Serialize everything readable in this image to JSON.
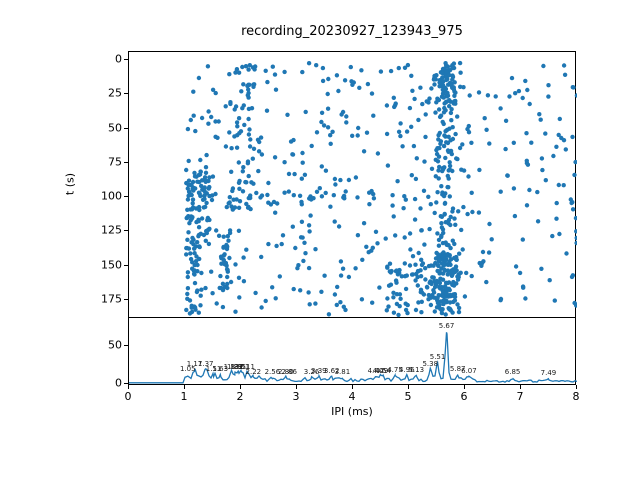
{
  "figure": {
    "title": "recording_20230927_123943_975",
    "background_color": "#ffffff",
    "accent_color": "#1f77b4",
    "axis_color": "#000000"
  },
  "chart_data": [
    {
      "type": "scatter",
      "title": "recording_20230927_123943_975",
      "xlabel": "IPI (ms)",
      "ylabel": "t (s)",
      "xlim": [
        0,
        8
      ],
      "ylim": [
        189,
        -6
      ],
      "y_axis_inverted": true,
      "x_ticks": [
        0,
        1,
        2,
        3,
        4,
        5,
        6,
        7,
        8
      ],
      "y_ticks": [
        0,
        25,
        50,
        75,
        100,
        125,
        150,
        175
      ],
      "marker_color": "#1f77b4",
      "marker_radius_px": 2.2,
      "grid": false,
      "legend": "none",
      "n_points_estimate": 1060,
      "clusters": [
        {
          "name": "background",
          "count": 330,
          "x": {
            "type": "uniform",
            "min": 1.02,
            "max": 6.2
          },
          "t": {
            "type": "uniform",
            "min": 2,
            "max": 186
          }
        },
        {
          "name": "background-right",
          "count": 80,
          "x": {
            "type": "uniform",
            "min": 6.2,
            "max": 7.97
          },
          "t": {
            "type": "uniform",
            "min": 2,
            "max": 186
          }
        },
        {
          "name": "band-5p67-full",
          "count": 150,
          "x": {
            "type": "gauss",
            "mean": 5.67,
            "std": 0.13
          },
          "t": {
            "type": "uniform",
            "min": 2,
            "max": 186
          }
        },
        {
          "name": "band-5p67-top",
          "count": 60,
          "x": {
            "type": "gauss",
            "mean": 5.67,
            "std": 0.11
          },
          "t": {
            "type": "uniform",
            "min": 2,
            "max": 32
          }
        },
        {
          "name": "band-5p67-bottom",
          "count": 110,
          "x": {
            "type": "gauss",
            "mean": 5.65,
            "std": 0.14
          },
          "t": {
            "type": "uniform",
            "min": 140,
            "max": 186
          }
        },
        {
          "name": "left-cluster",
          "count": 85,
          "x": {
            "type": "uniform",
            "min": 1.02,
            "max": 1.45
          },
          "t": {
            "type": "uniform",
            "min": 78,
            "max": 136
          }
        },
        {
          "name": "left-column-low",
          "count": 35,
          "x": {
            "type": "uniform",
            "min": 1.02,
            "max": 1.3
          },
          "t": {
            "type": "uniform",
            "min": 136,
            "max": 186
          }
        },
        {
          "name": "line-1p7",
          "count": 30,
          "x": {
            "type": "gauss",
            "mean": 1.72,
            "std": 0.05
          },
          "t": {
            "type": "uniform",
            "min": 125,
            "max": 172
          }
        },
        {
          "name": "band-2",
          "count": 70,
          "x": {
            "type": "gauss",
            "mean": 2.05,
            "std": 0.18
          },
          "t": {
            "type": "uniform",
            "min": 3,
            "max": 112
          }
        },
        {
          "name": "hband-100",
          "count": 40,
          "x": {
            "type": "uniform",
            "min": 1.05,
            "max": 6.0
          },
          "t": {
            "type": "gauss",
            "mean": 101,
            "std": 4
          }
        },
        {
          "name": "right-edge-column",
          "count": 18,
          "x": {
            "type": "uniform",
            "min": 7.88,
            "max": 8.0
          },
          "t": {
            "type": "uniform",
            "min": 4,
            "max": 184
          }
        },
        {
          "name": "bottom-cluster",
          "count": 60,
          "x": {
            "type": "uniform",
            "min": 4.6,
            "max": 5.5
          },
          "t": {
            "type": "uniform",
            "min": 148,
            "max": 186
          }
        }
      ]
    },
    {
      "type": "line",
      "xlabel": "IPI (ms)",
      "ylabel": "",
      "xlim": [
        0,
        8
      ],
      "ylim": [
        -3,
        85
      ],
      "x_ticks": [
        0,
        1,
        2,
        3,
        4,
        5,
        6,
        7,
        8
      ],
      "y_ticks": [
        0,
        50
      ],
      "line_color": "#1f77b4",
      "grid": false,
      "legend": "none",
      "baseline_regions": [
        {
          "from": 0,
          "to": 1.0,
          "level": 0.3
        },
        {
          "from": 1.0,
          "to": 2.35,
          "level": 6.5
        },
        {
          "from": 2.35,
          "to": 6.2,
          "level": 4.5
        },
        {
          "from": 6.2,
          "to": 8.01,
          "level": 2.5
        }
      ],
      "peaks": [
        {
          "x": 1.05,
          "h": 11,
          "w": 0.02,
          "label": "1.05"
        },
        {
          "x": 1.17,
          "h": 17,
          "w": 0.03,
          "label": "1.17"
        },
        {
          "x": 1.37,
          "h": 17,
          "w": 0.03,
          "label": "1.37"
        },
        {
          "x": 1.51,
          "h": 11,
          "w": 0.025,
          "label": "1.51"
        },
        {
          "x": 1.63,
          "h": 11,
          "w": 0.025,
          "label": "1.63"
        },
        {
          "x": 1.83,
          "h": 13,
          "w": 0.025,
          "label": "1.83"
        },
        {
          "x": 1.89,
          "h": 13,
          "w": 0.025,
          "label": "1.89"
        },
        {
          "x": 1.95,
          "h": 13,
          "w": 0.025,
          "label": "1.95"
        },
        {
          "x": 2.01,
          "h": 13,
          "w": 0.025,
          "label": "2.01"
        },
        {
          "x": 2.11,
          "h": 13,
          "w": 0.025,
          "label": "2.11"
        },
        {
          "x": 2.22,
          "h": 7,
          "w": 0.02,
          "label": "2.22"
        },
        {
          "x": 2.56,
          "h": 7,
          "w": 0.02,
          "label": "2.56"
        },
        {
          "x": 2.8,
          "h": 7,
          "w": 0.02,
          "label": "2.80"
        },
        {
          "x": 2.86,
          "h": 7,
          "w": 0.02,
          "label": "2.86"
        },
        {
          "x": 3.26,
          "h": 7,
          "w": 0.02,
          "label": "3.26"
        },
        {
          "x": 3.39,
          "h": 7.5,
          "w": 0.02,
          "label": "3.39"
        },
        {
          "x": 3.62,
          "h": 8,
          "w": 0.02,
          "label": "3.62"
        },
        {
          "x": 3.81,
          "h": 7,
          "w": 0.02,
          "label": "3.81"
        },
        {
          "x": 4.4,
          "h": 8,
          "w": 0.02,
          "label": "4.40"
        },
        {
          "x": 4.49,
          "h": 8.5,
          "w": 0.02,
          "label": "4.49"
        },
        {
          "x": 4.54,
          "h": 8.5,
          "w": 0.02,
          "label": "4.54"
        },
        {
          "x": 4.75,
          "h": 9,
          "w": 0.02,
          "label": "4.75"
        },
        {
          "x": 4.96,
          "h": 9,
          "w": 0.02,
          "label": "4.96"
        },
        {
          "x": 5.13,
          "h": 9.5,
          "w": 0.02,
          "label": "5.13"
        },
        {
          "x": 5.38,
          "h": 17,
          "w": 0.025,
          "label": "5.38"
        },
        {
          "x": 5.51,
          "h": 26,
          "w": 0.022,
          "label": "5.51"
        },
        {
          "x": 5.67,
          "h": 67,
          "w": 0.022,
          "label": "5.67"
        },
        {
          "x": 5.87,
          "h": 10,
          "w": 0.025,
          "label": "5.87"
        },
        {
          "x": 6.07,
          "h": 8.5,
          "w": 0.025,
          "label": "6.07"
        },
        {
          "x": 6.85,
          "h": 6,
          "w": 0.025,
          "label": "6.85"
        },
        {
          "x": 7.49,
          "h": 5,
          "w": 0.025,
          "label": "7.49"
        }
      ]
    }
  ]
}
